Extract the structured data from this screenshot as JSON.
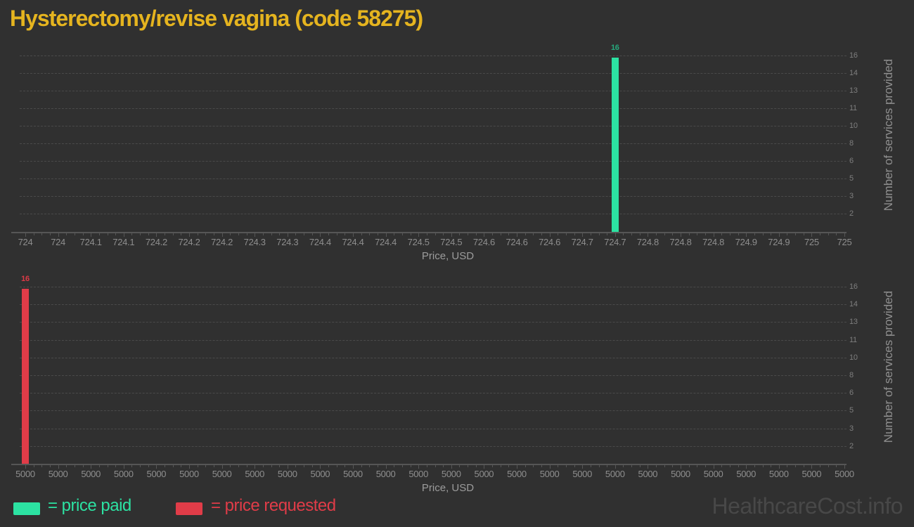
{
  "page": {
    "title": "Hysterectomy/revise vagina (code 58275)",
    "title_color": "#e5b41f",
    "background": "#303030",
    "watermark": "HealthcareCost.info",
    "watermark_color": "#484848"
  },
  "legend": {
    "items": [
      {
        "label": "= price paid",
        "color": "#2ce2a2"
      },
      {
        "label": "= price requested",
        "color": "#e03c48"
      }
    ]
  },
  "chart_data": [
    {
      "type": "bar",
      "name": "price paid histogram",
      "xlabel": "Price, USD",
      "ylabel": "Number of services provided",
      "x_range": [
        724,
        725
      ],
      "ylim": [
        0,
        16.5
      ],
      "grid": "dashed horizontal",
      "y_axis_side": "right",
      "y_gridline_labels": [
        16,
        14,
        13,
        11,
        10,
        8,
        6,
        5,
        3,
        2
      ],
      "x_tick_labels": [
        "724",
        "724",
        "724.1",
        "724.1",
        "724.2",
        "724.2",
        "724.2",
        "724.3",
        "724.3",
        "724.4",
        "724.4",
        "724.4",
        "724.5",
        "724.5",
        "724.6",
        "724.6",
        "724.6",
        "724.7",
        "724.7",
        "724.8",
        "724.8",
        "724.8",
        "724.9",
        "724.9",
        "725",
        "725"
      ],
      "bars": [
        {
          "tick_index": 18,
          "x_label": "724.7",
          "price": 724.7,
          "value": 16
        }
      ],
      "bar_color": "#2ce2a2",
      "value_label_color": "#26a87c"
    },
    {
      "type": "bar",
      "name": "price requested histogram",
      "xlabel": "Price, USD",
      "ylabel": "Number of services provided",
      "x_range": [
        5000,
        5000
      ],
      "ylim": [
        0,
        16.5
      ],
      "grid": "dashed horizontal",
      "y_axis_side": "right",
      "y_gridline_labels": [
        16,
        14,
        13,
        11,
        10,
        8,
        6,
        5,
        3,
        2
      ],
      "x_tick_labels": [
        "5000",
        "5000",
        "5000",
        "5000",
        "5000",
        "5000",
        "5000",
        "5000",
        "5000",
        "5000",
        "5000",
        "5000",
        "5000",
        "5000",
        "5000",
        "5000",
        "5000",
        "5000",
        "5000",
        "5000",
        "5000",
        "5000",
        "5000",
        "5000",
        "5000",
        "5000"
      ],
      "bars": [
        {
          "tick_index": 0,
          "x_label": "5000",
          "price": 5000,
          "value": 16
        }
      ],
      "bar_color": "#e03c48",
      "value_label_color": "#dd3a46"
    }
  ]
}
